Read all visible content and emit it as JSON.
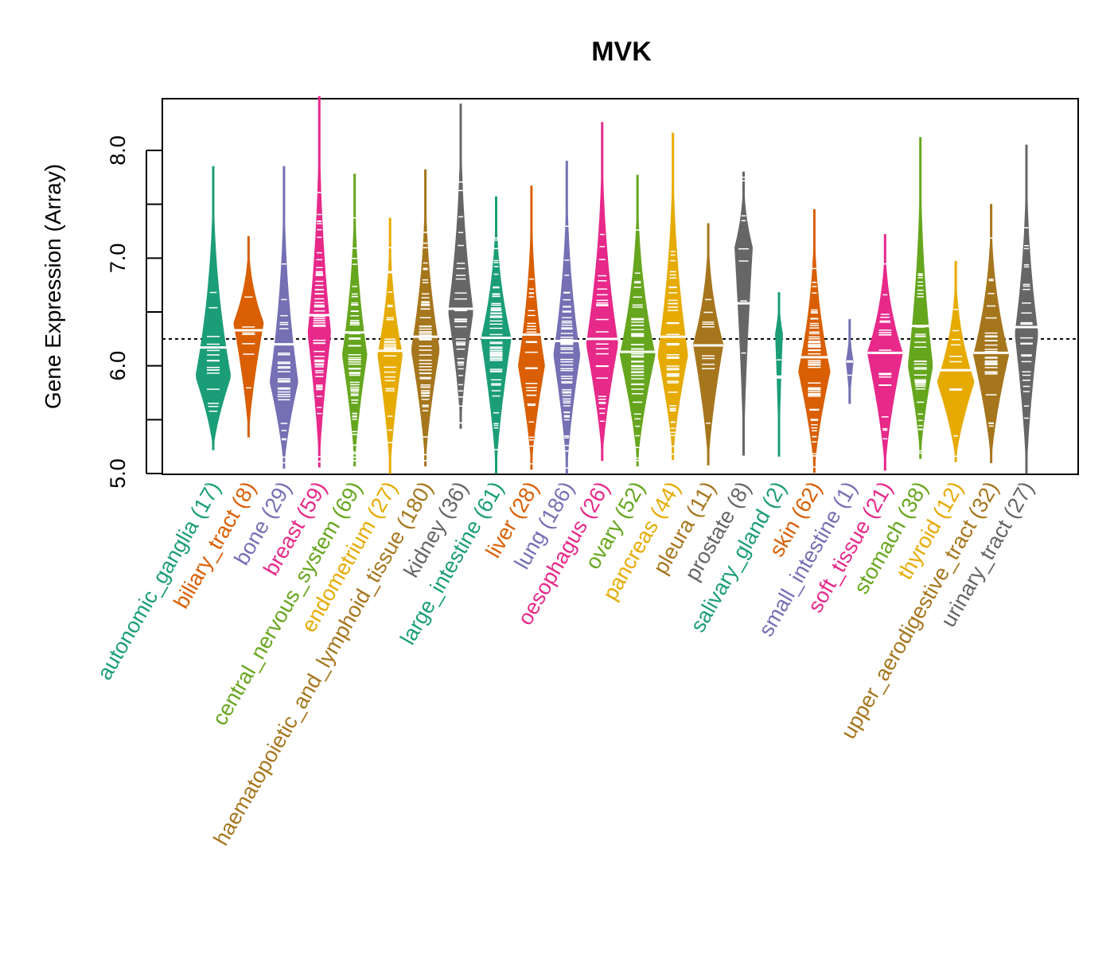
{
  "chart_data": {
    "type": "violin",
    "title": "MVK",
    "xlabel": "",
    "ylabel": "Gene Expression (Array)",
    "ylim": [
      5.0,
      8.5
    ],
    "yticks": [
      5.0,
      5.5,
      6.0,
      6.5,
      7.0,
      7.5,
      8.0
    ],
    "ytick_labels": [
      "5.0",
      "",
      "6.0",
      "",
      "7.0",
      "",
      "8.0"
    ],
    "reference_line": 6.25,
    "grid": false,
    "legend": "none",
    "categories": [
      {
        "name": "autonomic_ganglia",
        "n": 17,
        "label": "autonomic_ganglia (17)",
        "color": "#1B9E77",
        "min": 5.22,
        "max": 7.85,
        "median": 6.17,
        "mode": 5.9,
        "width": 1.0
      },
      {
        "name": "biliary_tract",
        "n": 8,
        "label": "biliary_tract (8)",
        "color": "#D95F02",
        "min": 5.34,
        "max": 7.2,
        "median": 6.33,
        "mode": 6.4,
        "width": 0.85
      },
      {
        "name": "bone",
        "n": 29,
        "label": "bone (29)",
        "color": "#7570B3",
        "min": 5.05,
        "max": 7.85,
        "median": 6.2,
        "mode": 5.85,
        "width": 0.8
      },
      {
        "name": "breast",
        "n": 59,
        "label": "breast (59)",
        "color": "#E7298A",
        "min": 5.06,
        "max": 8.5,
        "median": 6.47,
        "mode": 6.3,
        "width": 0.65
      },
      {
        "name": "central_nervous_system",
        "n": 69,
        "label": "central_nervous_system (69)",
        "color": "#66A61E",
        "min": 5.07,
        "max": 7.78,
        "median": 6.31,
        "mode": 6.1,
        "width": 0.7
      },
      {
        "name": "endometrium",
        "n": 27,
        "label": "endometrium (27)",
        "color": "#E6AB02",
        "min": 5.0,
        "max": 7.37,
        "median": 6.14,
        "mode": 6.1,
        "width": 0.7
      },
      {
        "name": "haematopoietic_and_lymphoid_tissue",
        "n": 180,
        "label": "haematopoietic_and_lymphoid_tissue (180)",
        "color": "#A6761D",
        "min": 5.07,
        "max": 7.82,
        "median": 6.27,
        "mode": 6.15,
        "width": 0.8
      },
      {
        "name": "kidney",
        "n": 36,
        "label": "kidney (36)",
        "color": "#666666",
        "min": 5.42,
        "max": 8.43,
        "median": 6.53,
        "mode": 6.5,
        "width": 0.7
      },
      {
        "name": "large_intestine",
        "n": 61,
        "label": "large_intestine (61)",
        "color": "#1B9E77",
        "min": 5.0,
        "max": 7.57,
        "median": 6.26,
        "mode": 6.25,
        "width": 0.85
      },
      {
        "name": "liver",
        "n": 28,
        "label": "liver (28)",
        "color": "#D95F02",
        "min": 5.04,
        "max": 7.67,
        "median": 6.29,
        "mode": 6.0,
        "width": 0.75
      },
      {
        "name": "lung",
        "n": 186,
        "label": "lung (186)",
        "color": "#7570B3",
        "min": 5.0,
        "max": 7.9,
        "median": 6.23,
        "mode": 6.1,
        "width": 0.75
      },
      {
        "name": "oesophagus",
        "n": 26,
        "label": "oesophagus (26)",
        "color": "#E7298A",
        "min": 5.12,
        "max": 8.26,
        "median": 6.25,
        "mode": 6.2,
        "width": 0.9
      },
      {
        "name": "ovary",
        "n": 52,
        "label": "ovary (52)",
        "color": "#66A61E",
        "min": 5.07,
        "max": 7.77,
        "median": 6.13,
        "mode": 6.1,
        "width": 1.0
      },
      {
        "name": "pancreas",
        "n": 44,
        "label": "pancreas (44)",
        "color": "#E6AB02",
        "min": 5.13,
        "max": 8.16,
        "median": 6.27,
        "mode": 6.1,
        "width": 0.85
      },
      {
        "name": "pleura",
        "n": 11,
        "label": "pleura (11)",
        "color": "#A6761D",
        "min": 5.08,
        "max": 7.32,
        "median": 6.19,
        "mode": 6.2,
        "width": 0.85
      },
      {
        "name": "prostate",
        "n": 8,
        "label": "prostate (8)",
        "color": "#666666",
        "min": 5.17,
        "max": 7.8,
        "median": 6.58,
        "mode": 7.1,
        "width": 0.5
      },
      {
        "name": "salivary_gland",
        "n": 2,
        "label": "salivary_gland (2)",
        "color": "#1B9E77",
        "min": 5.16,
        "max": 6.68,
        "median": 5.9,
        "mode": 6.3,
        "width": 0.2
      },
      {
        "name": "skin",
        "n": 62,
        "label": "skin (62)",
        "color": "#D95F02",
        "min": 5.01,
        "max": 7.45,
        "median": 6.08,
        "mode": 5.95,
        "width": 0.9
      },
      {
        "name": "small_intestine",
        "n": 1,
        "label": "small_intestine (1)",
        "color": "#7570B3",
        "min": 5.65,
        "max": 6.43,
        "median": 6.04,
        "mode": 6.04,
        "width": 0.2
      },
      {
        "name": "soft_tissue",
        "n": 21,
        "label": "soft_tissue (21)",
        "color": "#E7298A",
        "min": 5.03,
        "max": 7.22,
        "median": 6.12,
        "mode": 6.12,
        "width": 1.0
      },
      {
        "name": "stomach",
        "n": 38,
        "label": "stomach (38)",
        "color": "#66A61E",
        "min": 5.14,
        "max": 8.12,
        "median": 6.37,
        "mode": 6.0,
        "width": 0.7
      },
      {
        "name": "thyroid",
        "n": 12,
        "label": "thyroid (12)",
        "color": "#E6AB02",
        "min": 5.11,
        "max": 6.97,
        "median": 5.96,
        "mode": 5.85,
        "width": 1.05
      },
      {
        "name": "upper_aerodigestive_tract",
        "n": 32,
        "label": "upper_aerodigestive_tract (32)",
        "color": "#A6761D",
        "min": 5.1,
        "max": 7.5,
        "median": 6.12,
        "mode": 6.1,
        "width": 1.0
      },
      {
        "name": "urinary_tract",
        "n": 27,
        "label": "urinary_tract (27)",
        "color": "#666666",
        "min": 5.0,
        "max": 8.05,
        "median": 6.36,
        "mode": 6.3,
        "width": 0.65
      }
    ]
  }
}
